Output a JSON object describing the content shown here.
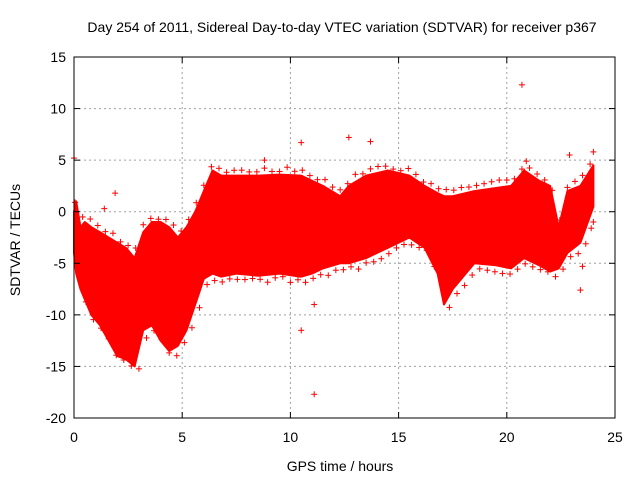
{
  "chart_data": {
    "type": "scatter",
    "title": "Day 254 of 2011, Sidereal Day-to-day VTEC variation (SDTVAR) for receiver p367",
    "xlabel": "GPS time / hours",
    "ylabel": "SDTVAR / TECUs",
    "xlim": [
      0,
      25
    ],
    "ylim": [
      -20,
      15
    ],
    "xticks": [
      0,
      5,
      10,
      15,
      20,
      25
    ],
    "yticks": [
      -20,
      -15,
      -10,
      -5,
      0,
      5,
      10,
      15
    ],
    "grid": true,
    "legend": "none",
    "marker": "+",
    "colors": {
      "series": "#ff0000",
      "axis": "#000000",
      "grid": "#a0a0a0"
    },
    "series": [
      {
        "name": "SDTVAR",
        "envelope": [
          [
            0.0,
            -4,
            0
          ],
          [
            0.1,
            -6,
            1
          ],
          [
            0.3,
            -7.5,
            -1.5
          ],
          [
            0.5,
            -8.5,
            -1
          ],
          [
            0.8,
            -10,
            -1.5
          ],
          [
            1.2,
            -11,
            -2
          ],
          [
            1.6,
            -12.5,
            -2.5
          ],
          [
            2.0,
            -14,
            -3
          ],
          [
            2.4,
            -14.3,
            -3.5
          ],
          [
            2.8,
            -15,
            -4.5
          ],
          [
            3.2,
            -11.5,
            -2
          ],
          [
            3.6,
            -11,
            -1
          ],
          [
            4.0,
            -12.5,
            -1
          ],
          [
            4.4,
            -13.5,
            -1.5
          ],
          [
            4.8,
            -13,
            -2.5
          ],
          [
            5.2,
            -11.5,
            -1.5
          ],
          [
            5.6,
            -9,
            0
          ],
          [
            6.0,
            -6.5,
            2
          ],
          [
            6.4,
            -6,
            4
          ],
          [
            6.8,
            -6.3,
            3.5
          ],
          [
            7.5,
            -6,
            3.5
          ],
          [
            8.5,
            -6.2,
            3.5
          ],
          [
            9.5,
            -6,
            3.6
          ],
          [
            10.5,
            -6.3,
            3.5
          ],
          [
            11.0,
            -6,
            3
          ],
          [
            11.5,
            -5.5,
            2.5
          ],
          [
            12.3,
            -5,
            1.5
          ],
          [
            12.7,
            -5,
            2.5
          ],
          [
            13.5,
            -4.5,
            3.5
          ],
          [
            14.5,
            -3.5,
            4
          ],
          [
            15.5,
            -2.5,
            3.5
          ],
          [
            16.2,
            -3.5,
            2.5
          ],
          [
            16.8,
            -6,
            1.8
          ],
          [
            17.1,
            -9,
            1.5
          ],
          [
            17.5,
            -7.5,
            1.5
          ],
          [
            18.5,
            -5,
            2
          ],
          [
            19.5,
            -5.2,
            2.3
          ],
          [
            20.2,
            -5.5,
            2.5
          ],
          [
            20.8,
            -4.5,
            4
          ],
          [
            21.5,
            -5.2,
            3
          ],
          [
            22.0,
            -5.8,
            2.5
          ],
          [
            22.4,
            -5.5,
            -1.5
          ],
          [
            22.8,
            -4,
            2
          ],
          [
            23.4,
            -3,
            2.5
          ],
          [
            24.0,
            0.5,
            4.5
          ]
        ],
        "outliers": [
          [
            20.7,
            12.3
          ],
          [
            10.5,
            6.7
          ],
          [
            10.5,
            -11.5
          ],
          [
            11.1,
            -17.7
          ],
          [
            23.4,
            -7.6
          ],
          [
            23.5,
            -5.3
          ],
          [
            22.9,
            5.5
          ],
          [
            13.7,
            6.8
          ],
          [
            12.7,
            7.2
          ],
          [
            8.8,
            5.0
          ],
          [
            0.0,
            5.2
          ],
          [
            24.0,
            5.8
          ],
          [
            23.9,
            -1.6
          ],
          [
            11.1,
            -9.0
          ],
          [
            1.9,
            1.8
          ],
          [
            1.4,
            0.3
          ],
          [
            20.9,
            4.9
          ]
        ]
      }
    ]
  }
}
